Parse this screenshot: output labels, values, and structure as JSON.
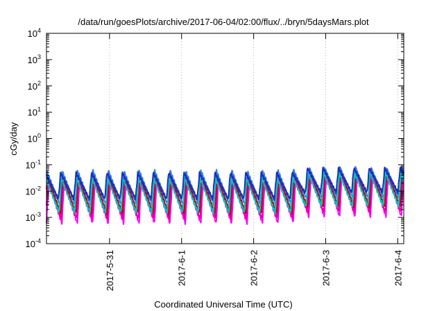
{
  "chart_data": {
    "type": "line",
    "title": "/data/run/goesPlots/archive/2017-06-04/02:00/flux/../bryn/5daysMars.plot",
    "xlabel": "Coordinated Universal Time (UTC)",
    "ylabel": "cGy/day",
    "yscale": "log",
    "ylim": [
      0.0001,
      10000
    ],
    "xlim": [
      "2017-05-30T03:00",
      "2017-06-04T02:00"
    ],
    "x_ticks": [
      "2017-5-31",
      "2017-6-1",
      "2017-6-2",
      "2017-6-3",
      "2017-6-4"
    ],
    "y_ticks": [
      {
        "base": "10",
        "exp": "-4",
        "value": 0.0001
      },
      {
        "base": "10",
        "exp": "-3",
        "value": 0.001
      },
      {
        "base": "10",
        "exp": "-2",
        "value": 0.01
      },
      {
        "base": "10",
        "exp": "-1",
        "value": 0.1
      },
      {
        "base": "10",
        "exp": "0",
        "value": 1
      },
      {
        "base": "10",
        "exp": "1",
        "value": 10
      },
      {
        "base": "10",
        "exp": "2",
        "value": 100
      },
      {
        "base": "10",
        "exp": "3",
        "value": 1000
      },
      {
        "base": "10",
        "exp": "4",
        "value": 10000
      }
    ],
    "grid": "vertical dotted at x ticks",
    "cycle_hours": 5.14,
    "series": [
      {
        "color": "#ff00ff",
        "peak": 0.02,
        "trough": 0.0006,
        "late_peak": 0.04
      },
      {
        "color": "#e0009a",
        "peak": 0.025,
        "trough": 0.0009,
        "late_peak": 0.05
      },
      {
        "color": "#b40d0d",
        "peak": 0.04,
        "trough": 0.0014,
        "late_peak": 0.07
      },
      {
        "color": "#2a7ff0",
        "peak": 0.06,
        "trough": 0.003,
        "late_peak": 0.08
      },
      {
        "color": "#00c2c2",
        "peak": 0.03,
        "trough": 0.0015,
        "late_peak": 0.05
      },
      {
        "color": "#1d2fb8",
        "peak": 0.05,
        "trough": 0.005,
        "late_peak": 0.075
      }
    ]
  }
}
